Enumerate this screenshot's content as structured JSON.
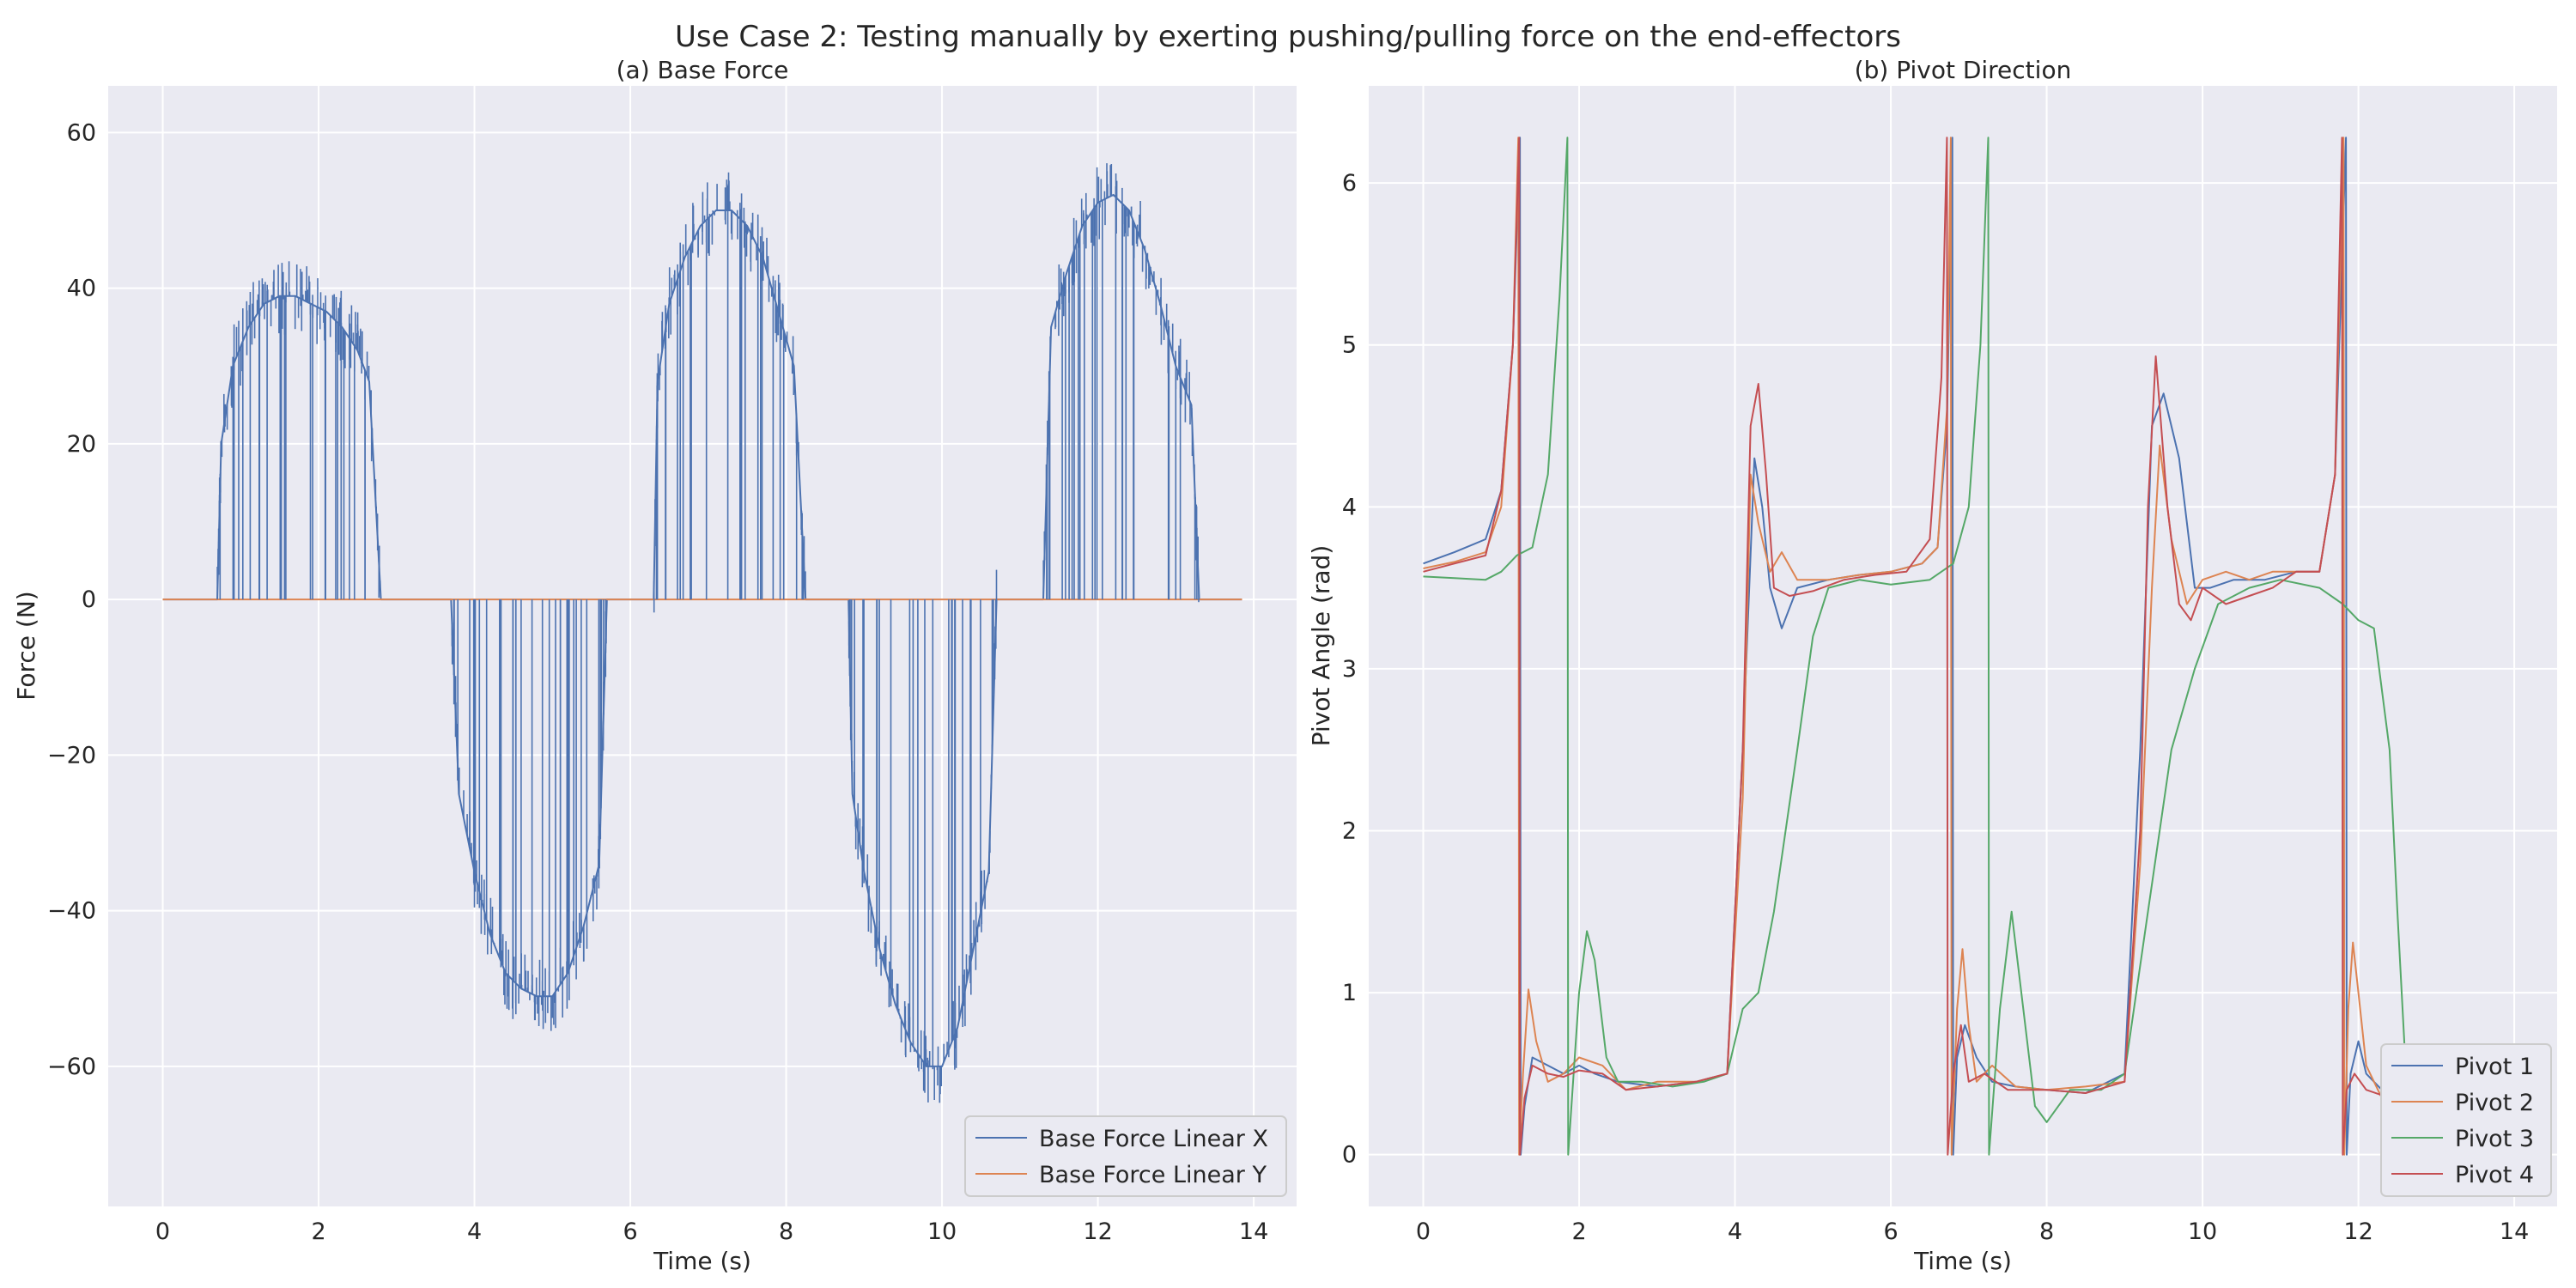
{
  "figure": {
    "suptitle": "Use Case 2: Testing manually by exerting pushing/pulling force on the end-effectors"
  },
  "chart_data": [
    {
      "type": "line",
      "title": "(a) Base Force",
      "xlabel": "Time (s)",
      "ylabel": "Force (N)",
      "xlim": [
        -0.7,
        14.55
      ],
      "ylim": [
        -78,
        66
      ],
      "xticks": [
        0,
        2,
        4,
        6,
        8,
        10,
        12,
        14
      ],
      "yticks": [
        -60,
        -40,
        -20,
        0,
        20,
        40,
        60
      ],
      "tick_labels_x": [
        "0",
        "2",
        "4",
        "6",
        "8",
        "10",
        "12",
        "14"
      ],
      "tick_labels_y": [
        "−60",
        "−40",
        "−20",
        "0",
        "20",
        "40",
        "60"
      ],
      "grid": true,
      "legend": "lower right",
      "series": [
        {
          "name": "Base Force Linear X",
          "color": "#4c72b0",
          "description_points": {
            "x": [
              0,
              0.7,
              0.75,
              0.9,
              1.1,
              1.3,
              1.5,
              1.7,
              1.9,
              2.1,
              2.3,
              2.5,
              2.65,
              2.8,
              3.7,
              3.8,
              4.0,
              4.2,
              4.4,
              4.6,
              4.8,
              5.0,
              5.2,
              5.4,
              5.6,
              5.7,
              6.3,
              6.35,
              6.5,
              6.7,
              6.9,
              7.1,
              7.3,
              7.5,
              7.7,
              7.9,
              8.1,
              8.25,
              8.8,
              8.85,
              9.0,
              9.2,
              9.4,
              9.6,
              9.8,
              10.0,
              10.2,
              10.4,
              10.6,
              10.7,
              11.3,
              11.4,
              11.6,
              11.8,
              12.0,
              12.2,
              12.4,
              12.6,
              12.8,
              13.0,
              13.2,
              13.3,
              13.85
            ],
            "y": [
              0,
              0,
              20,
              30,
              35,
              38,
              39,
              39,
              38,
              37,
              35,
              32,
              28,
              0,
              0,
              -25,
              -35,
              -43,
              -48,
              -50,
              -51,
              -51,
              -48,
              -42,
              -34,
              0,
              0,
              28,
              38,
              44,
              48,
              50,
              50,
              48,
              44,
              37,
              30,
              0,
              0,
              -25,
              -35,
              -45,
              -52,
              -57,
              -60,
              -60,
              -55,
              -45,
              -35,
              0,
              0,
              35,
              42,
              48,
              51,
              52,
              50,
              45,
              38,
              30,
              25,
              0,
              0
            ]
          }
        },
        {
          "name": "Base Force Linear Y",
          "color": "#dd8452",
          "description_points": {
            "x": [
              0,
              13.85
            ],
            "y": [
              0,
              0
            ]
          }
        }
      ]
    },
    {
      "type": "line",
      "title": "(b) Pivot Direction",
      "xlabel": "Time (s)",
      "ylabel": "Pivot Angle (rad)",
      "xlim": [
        -0.7,
        14.55
      ],
      "ylim": [
        -0.32,
        6.6
      ],
      "xticks": [
        0,
        2,
        4,
        6,
        8,
        10,
        12,
        14
      ],
      "yticks": [
        0,
        1,
        2,
        3,
        4,
        5,
        6
      ],
      "tick_labels_x": [
        "0",
        "2",
        "4",
        "6",
        "8",
        "10",
        "12",
        "14"
      ],
      "tick_labels_y": [
        "0",
        "1",
        "2",
        "3",
        "4",
        "5",
        "6"
      ],
      "grid": true,
      "legend": "lower right",
      "series": [
        {
          "name": "Pivot 1",
          "color": "#4c72b0",
          "x": [
            0,
            0.4,
            0.8,
            1.0,
            1.15,
            1.24,
            1.25,
            1.3,
            1.4,
            1.6,
            1.8,
            2.0,
            2.2,
            2.5,
            3.0,
            3.5,
            3.9,
            4.1,
            4.25,
            4.35,
            4.45,
            4.6,
            4.8,
            5.2,
            5.6,
            6.0,
            6.4,
            6.6,
            6.72,
            6.79,
            6.8,
            6.85,
            6.95,
            7.1,
            7.3,
            7.6,
            8.0,
            8.5,
            9.0,
            9.2,
            9.35,
            9.5,
            9.7,
            9.9,
            10.1,
            10.4,
            10.8,
            11.2,
            11.5,
            11.7,
            11.84,
            11.85,
            11.9,
            12.0,
            12.1,
            12.3,
            12.6,
            13.0,
            13.4
          ],
          "y": [
            3.65,
            3.72,
            3.8,
            4.1,
            5.0,
            6.28,
            0.0,
            0.3,
            0.6,
            0.55,
            0.5,
            0.55,
            0.5,
            0.45,
            0.42,
            0.45,
            0.5,
            2.5,
            4.3,
            4.0,
            3.5,
            3.25,
            3.5,
            3.55,
            3.58,
            3.6,
            3.65,
            3.75,
            4.5,
            6.28,
            0.0,
            0.6,
            0.8,
            0.6,
            0.45,
            0.42,
            0.4,
            0.38,
            0.5,
            2.5,
            4.5,
            4.7,
            4.3,
            3.5,
            3.5,
            3.55,
            3.55,
            3.6,
            3.6,
            4.2,
            6.28,
            0.0,
            0.5,
            0.7,
            0.5,
            0.4,
            0.35,
            0.3,
            0.3
          ]
        },
        {
          "name": "Pivot 2",
          "color": "#dd8452",
          "x": [
            0,
            0.4,
            0.8,
            1.0,
            1.15,
            1.22,
            1.23,
            1.28,
            1.35,
            1.45,
            1.6,
            1.8,
            2.0,
            2.3,
            2.6,
            3.0,
            3.5,
            3.9,
            4.1,
            4.2,
            4.3,
            4.45,
            4.6,
            4.8,
            5.2,
            5.6,
            6.0,
            6.4,
            6.6,
            6.72,
            6.77,
            6.78,
            6.85,
            6.92,
            7.0,
            7.1,
            7.3,
            7.6,
            8.0,
            8.5,
            9.0,
            9.2,
            9.35,
            9.45,
            9.6,
            9.8,
            10.0,
            10.3,
            10.6,
            10.9,
            11.2,
            11.5,
            11.7,
            11.81,
            11.82,
            11.87,
            11.93,
            12.0,
            12.1,
            12.3,
            12.6,
            13.0,
            13.4
          ],
          "y": [
            3.62,
            3.66,
            3.72,
            4.0,
            5.0,
            6.28,
            0.0,
            0.5,
            1.02,
            0.7,
            0.45,
            0.5,
            0.6,
            0.55,
            0.4,
            0.45,
            0.45,
            0.5,
            2.2,
            4.2,
            3.9,
            3.6,
            3.72,
            3.55,
            3.55,
            3.58,
            3.6,
            3.65,
            3.75,
            4.6,
            6.28,
            0.0,
            0.9,
            1.27,
            0.8,
            0.45,
            0.55,
            0.42,
            0.4,
            0.42,
            0.45,
            1.8,
            3.5,
            4.38,
            3.8,
            3.4,
            3.55,
            3.6,
            3.55,
            3.6,
            3.6,
            3.6,
            4.2,
            6.28,
            0.0,
            0.9,
            1.31,
            1.0,
            0.55,
            0.35,
            0.3,
            0.3,
            0.3
          ]
        },
        {
          "name": "Pivot 3",
          "color": "#55a868",
          "x": [
            0,
            0.4,
            0.8,
            1.0,
            1.2,
            1.4,
            1.6,
            1.75,
            1.85,
            1.86,
            2.0,
            2.1,
            2.2,
            2.35,
            2.5,
            2.8,
            3.2,
            3.6,
            3.9,
            4.1,
            4.3,
            4.5,
            4.8,
            5.0,
            5.2,
            5.6,
            6.0,
            6.5,
            6.8,
            7.0,
            7.15,
            7.25,
            7.26,
            7.4,
            7.55,
            7.7,
            7.85,
            8.0,
            8.3,
            8.7,
            9.0,
            9.3,
            9.6,
            9.9,
            10.2,
            10.6,
            11.0,
            11.5,
            11.8,
            12.0,
            12.2,
            12.4,
            12.5,
            12.6,
            12.7
          ],
          "y": [
            3.57,
            3.56,
            3.55,
            3.6,
            3.7,
            3.75,
            4.2,
            5.3,
            6.28,
            0.0,
            1.0,
            1.38,
            1.2,
            0.6,
            0.45,
            0.45,
            0.42,
            0.45,
            0.5,
            0.9,
            1.0,
            1.5,
            2.5,
            3.2,
            3.5,
            3.55,
            3.52,
            3.55,
            3.65,
            4.0,
            5.0,
            6.28,
            0.0,
            0.9,
            1.5,
            0.9,
            0.3,
            0.2,
            0.4,
            0.4,
            0.5,
            1.5,
            2.5,
            3.0,
            3.4,
            3.5,
            3.55,
            3.5,
            3.4,
            3.3,
            3.25,
            2.5,
            1.5,
            0.6,
            0.3
          ]
        },
        {
          "name": "Pivot 4",
          "color": "#c44e52",
          "x": [
            0,
            0.4,
            0.8,
            1.0,
            1.15,
            1.23,
            1.24,
            1.3,
            1.4,
            1.6,
            1.8,
            2.0,
            2.3,
            2.6,
            3.0,
            3.5,
            3.9,
            4.1,
            4.2,
            4.3,
            4.4,
            4.5,
            4.7,
            5.0,
            5.4,
            5.8,
            6.2,
            6.5,
            6.65,
            6.72,
            6.73,
            6.8,
            6.9,
            7.0,
            7.2,
            7.5,
            8.0,
            8.5,
            9.0,
            9.2,
            9.3,
            9.4,
            9.55,
            9.7,
            9.85,
            10.0,
            10.3,
            10.6,
            10.9,
            11.2,
            11.5,
            11.7,
            11.79,
            11.8,
            11.85,
            11.95,
            12.1,
            12.4,
            12.8,
            13.2
          ],
          "y": [
            3.6,
            3.65,
            3.7,
            4.1,
            5.0,
            6.28,
            0.0,
            0.35,
            0.55,
            0.5,
            0.48,
            0.52,
            0.5,
            0.4,
            0.42,
            0.45,
            0.5,
            2.5,
            4.5,
            4.76,
            4.2,
            3.5,
            3.45,
            3.48,
            3.55,
            3.58,
            3.6,
            3.8,
            4.8,
            6.28,
            0.0,
            0.5,
            0.8,
            0.45,
            0.5,
            0.4,
            0.4,
            0.38,
            0.45,
            2.0,
            4.0,
            4.93,
            4.0,
            3.4,
            3.3,
            3.5,
            3.4,
            3.45,
            3.5,
            3.6,
            3.6,
            4.2,
            6.28,
            0.0,
            0.4,
            0.5,
            0.4,
            0.35,
            0.3,
            0.3
          ]
        }
      ]
    }
  ]
}
